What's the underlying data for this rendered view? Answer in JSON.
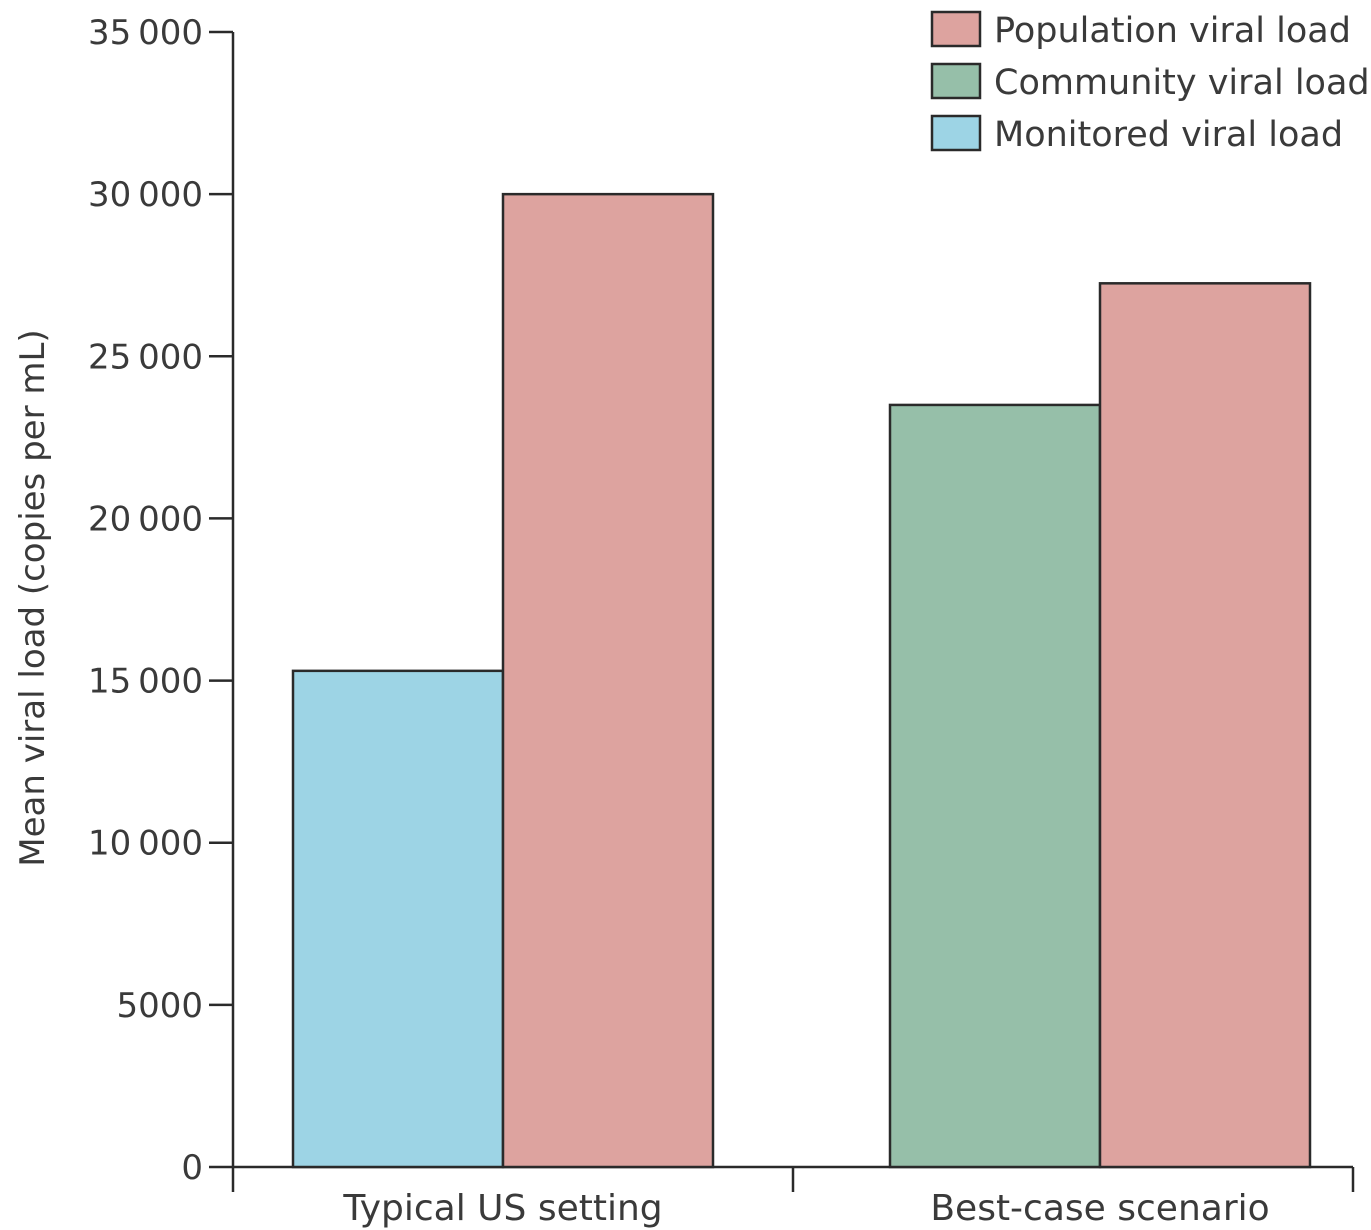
{
  "chart_data": {
    "type": "bar",
    "title": "",
    "xlabel": "",
    "ylabel": "Mean viral load (copies per mL)",
    "ylim": [
      0,
      35000
    ],
    "yticks": [
      0,
      5000,
      10000,
      15000,
      20000,
      25000,
      30000,
      35000
    ],
    "ytick_labels": [
      "0",
      "5000",
      "10 000",
      "15 000",
      "20 000",
      "25 000",
      "30 000",
      "35 000"
    ],
    "categories": [
      "Typical US setting",
      "Best-case scenario"
    ],
    "bars": [
      {
        "category": "Typical US setting",
        "series": "Monitored viral load",
        "value": 15300
      },
      {
        "category": "Typical US setting",
        "series": "Population viral load",
        "value": 30000
      },
      {
        "category": "Best-case scenario",
        "series": "Community viral load",
        "value": 23500
      },
      {
        "category": "Best-case scenario",
        "series": "Population viral load",
        "value": 27250
      }
    ],
    "legend": {
      "position": "top-right",
      "entries": [
        {
          "name": "Population viral load",
          "color": "#dda39f"
        },
        {
          "name": "Community viral load",
          "color": "#96bfa9"
        },
        {
          "name": "Monitored viral load",
          "color": "#9dd4e5"
        }
      ]
    },
    "grid": false
  }
}
